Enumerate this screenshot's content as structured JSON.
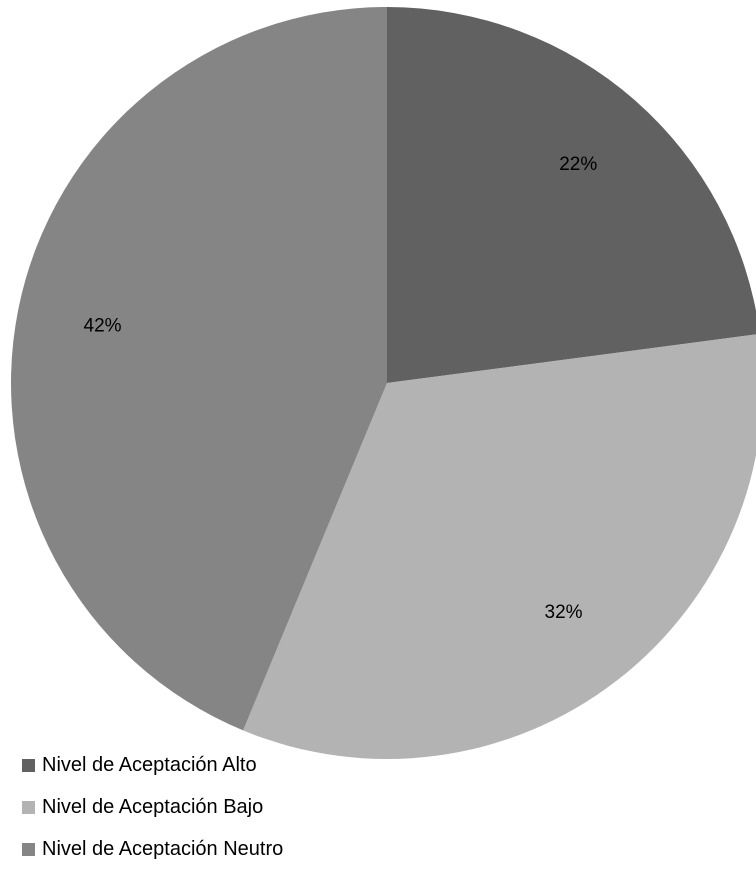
{
  "chart_data": {
    "type": "pie",
    "title": "",
    "categories": [
      "Nivel de Aceptación Alto",
      "Nivel de Aceptación Bajo",
      "Nivel de Aceptación Neutro"
    ],
    "values": [
      22,
      32,
      42
    ],
    "data_labels": [
      "22%",
      "32%",
      "42%"
    ],
    "colors": [
      "#616161",
      "#b3b3b3",
      "#858585"
    ],
    "legend_position": "bottom-left"
  }
}
